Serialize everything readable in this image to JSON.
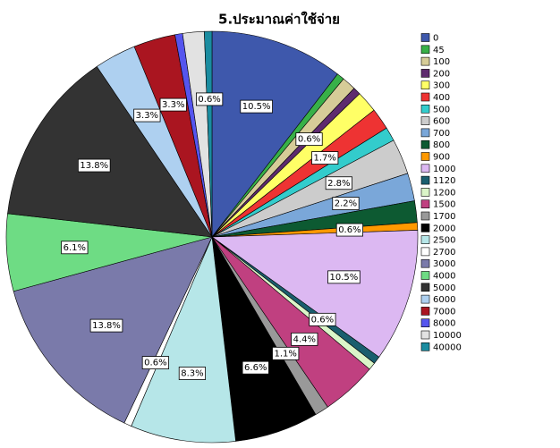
{
  "chart_data": {
    "type": "pie",
    "title": "5.ประมาณค่าใช้จ่าย",
    "categories": [
      "0",
      "45",
      "100",
      "200",
      "300",
      "400",
      "500",
      "600",
      "700",
      "800",
      "900",
      "1000",
      "1120",
      "1200",
      "1500",
      "1700",
      "2000",
      "2500",
      "2700",
      "3000",
      "4000",
      "5000",
      "6000",
      "7000",
      "8000",
      "10000",
      "40000"
    ],
    "values": [
      10.5,
      0.6,
      1.1,
      0.6,
      1.7,
      1.7,
      1.1,
      2.8,
      2.2,
      1.7,
      0.6,
      10.5,
      0.6,
      0.6,
      4.4,
      1.1,
      6.6,
      8.3,
      0.6,
      13.8,
      6.1,
      13.8,
      3.3,
      3.3,
      0.6,
      1.7,
      0.6
    ],
    "value_labels": [
      "10.5%",
      null,
      null,
      "0.6%",
      null,
      "1.7%",
      null,
      "2.8%",
      "2.2%",
      null,
      "0.6%",
      "10.5%",
      "0.6%",
      null,
      "4.4%",
      "1.1%",
      "6.6%",
      "8.3%",
      "0.6%",
      "13.8%",
      "6.1%",
      "13.8%",
      "3.3%",
      "3.3%",
      null,
      null,
      "0.6%"
    ],
    "colors": [
      "#3e58ac",
      "#38b048",
      "#d6cc98",
      "#5e2b6e",
      "#ffff66",
      "#ee3333",
      "#33cccc",
      "#cccccc",
      "#7aa7d9",
      "#0d5a32",
      "#ff9900",
      "#dcb8f2",
      "#1a5e6e",
      "#daf5c8",
      "#c04080",
      "#999999",
      "#000000",
      "#b6e6e8",
      "#ffffff",
      "#7a7aaa",
      "#6edc84",
      "#333333",
      "#aed0f0",
      "#aa1520",
      "#5555ee",
      "#e2e2e2",
      "#1a8ca0"
    ]
  }
}
